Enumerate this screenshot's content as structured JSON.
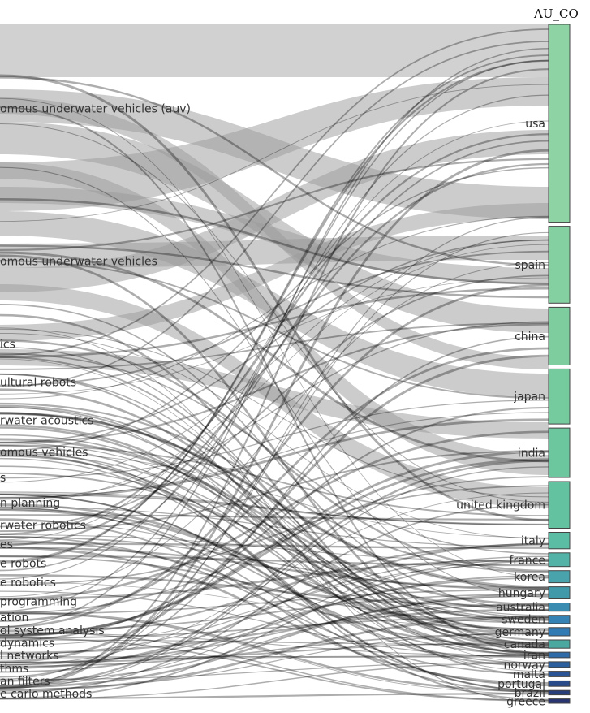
{
  "chart_data": {
    "type": "sankey",
    "right_axis_title": "AU_CO",
    "left_nodes": [
      {
        "label": "omous underwater vehicles (auv)",
        "weight": 14
      },
      {
        "label": "omous underwater vehicles",
        "weight": 10
      },
      {
        "label": "ics",
        "weight": 3
      },
      {
        "label": "ultural robots",
        "weight": 3
      },
      {
        "label": "rwater acoustics",
        "weight": 3
      },
      {
        "label": "omous vehicles",
        "weight": 2
      },
      {
        "label": "s",
        "weight": 2
      },
      {
        "label": "n planning",
        "weight": 2
      },
      {
        "label": "rwater robotics",
        "weight": 1.5
      },
      {
        "label": "es",
        "weight": 1.5
      },
      {
        "label": "e robots",
        "weight": 1.5
      },
      {
        "label": "e robotics",
        "weight": 1.5
      },
      {
        "label": "programming",
        "weight": 1.5
      },
      {
        "label": "ation",
        "weight": 1
      },
      {
        "label": "ol system analysis",
        "weight": 1
      },
      {
        "label": "dynamics",
        "weight": 1
      },
      {
        "label": "l networks",
        "weight": 1
      },
      {
        "label": "thms",
        "weight": 1
      },
      {
        "label": "an filters",
        "weight": 1
      },
      {
        "label": "e carlo methods",
        "weight": 1
      }
    ],
    "right_nodes": [
      {
        "label": "usa",
        "weight": 36,
        "color": "#8dd3a3"
      },
      {
        "label": "spain",
        "weight": 14,
        "color": "#85d0a0"
      },
      {
        "label": "china",
        "weight": 10.5,
        "color": "#7dcd9e"
      },
      {
        "label": "japan",
        "weight": 10,
        "color": "#75ca9e"
      },
      {
        "label": "india",
        "weight": 9,
        "color": "#6cc79f"
      },
      {
        "label": "united kingdom",
        "weight": 8.5,
        "color": "#63c3a0"
      },
      {
        "label": "italy",
        "weight": 3,
        "color": "#5bbda4"
      },
      {
        "label": "france",
        "weight": 2.5,
        "color": "#52b3a6"
      },
      {
        "label": "korea",
        "weight": 2.2,
        "color": "#48a3ac"
      },
      {
        "label": "hungary",
        "weight": 2.2,
        "color": "#3f99a9"
      },
      {
        "label": "australia",
        "weight": 1.5,
        "color": "#3a8db0"
      },
      {
        "label": "sweden",
        "weight": 1.5,
        "color": "#3583b4"
      },
      {
        "label": "germany",
        "weight": 1.5,
        "color": "#327ab4"
      },
      {
        "label": "canada",
        "weight": 1.5,
        "color": "#4aa8a0"
      },
      {
        "label": "iran",
        "weight": 1,
        "color": "#2e6aa8"
      },
      {
        "label": "norway",
        "weight": 1,
        "color": "#2c5f9e"
      },
      {
        "label": "malta",
        "weight": 1,
        "color": "#2a5494"
      },
      {
        "label": "portugal",
        "weight": 1,
        "color": "#2a4b89"
      },
      {
        "label": "brazil",
        "weight": 0.8,
        "color": "#293f7b"
      },
      {
        "label": "greece",
        "weight": 0.8,
        "color": "#283570"
      }
    ]
  }
}
